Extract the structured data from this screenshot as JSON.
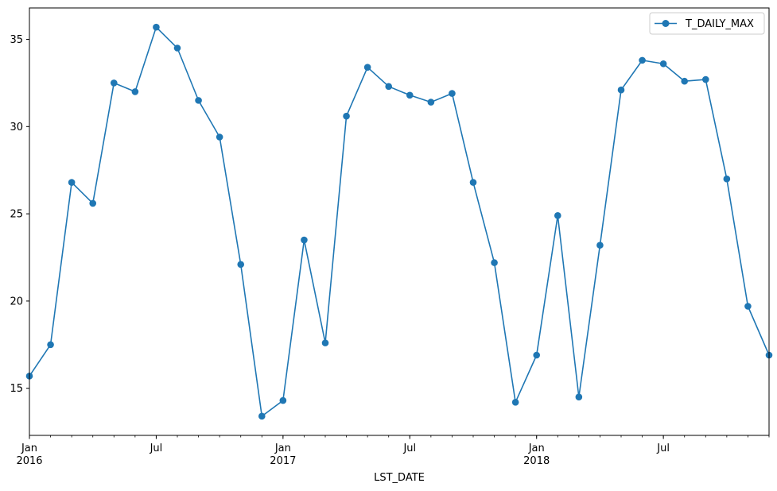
{
  "chart_data": {
    "type": "line",
    "xlabel": "LST_DATE",
    "ylabel": "",
    "title": "",
    "ylim": [
      12.3,
      36.8
    ],
    "yticks": [
      15,
      20,
      25,
      30,
      35
    ],
    "xrange": [
      "2016-01",
      "2018-12"
    ],
    "x": [
      "2016-01",
      "2016-02",
      "2016-03",
      "2016-04",
      "2016-05",
      "2016-06",
      "2016-07",
      "2016-08",
      "2016-09",
      "2016-10",
      "2016-11",
      "2016-12",
      "2017-01",
      "2017-02",
      "2017-03",
      "2017-04",
      "2017-05",
      "2017-06",
      "2017-07",
      "2017-08",
      "2017-09",
      "2017-10",
      "2017-11",
      "2017-12",
      "2018-01",
      "2018-02",
      "2018-03",
      "2018-04",
      "2018-05",
      "2018-06",
      "2018-07",
      "2018-08",
      "2018-09",
      "2018-10",
      "2018-11",
      "2018-12"
    ],
    "series": [
      {
        "name": "T_DAILY_MAX",
        "color": "#1f77b4",
        "marker": "circle",
        "values": [
          15.7,
          17.5,
          26.8,
          25.6,
          32.5,
          32.0,
          35.7,
          34.5,
          31.5,
          29.4,
          22.1,
          13.4,
          14.3,
          23.5,
          17.6,
          30.6,
          33.4,
          32.3,
          31.8,
          31.4,
          31.9,
          26.8,
          22.2,
          14.2,
          16.9,
          24.9,
          14.5,
          23.2,
          32.1,
          33.8,
          33.6,
          32.6,
          32.7,
          27.0,
          19.7,
          16.9
        ]
      }
    ],
    "xticks_major": [
      {
        "month": "2016-01",
        "label": "Jan",
        "year": "2016"
      },
      {
        "month": "2016-07",
        "label": "Jul",
        "year": ""
      },
      {
        "month": "2017-01",
        "label": "Jan",
        "year": "2017"
      },
      {
        "month": "2017-07",
        "label": "Jul",
        "year": ""
      },
      {
        "month": "2018-01",
        "label": "Jan",
        "year": "2018"
      },
      {
        "month": "2018-07",
        "label": "Jul",
        "year": ""
      }
    ],
    "legend": {
      "position": "top-right",
      "entries": [
        "T_DAILY_MAX"
      ]
    },
    "grid": false
  }
}
